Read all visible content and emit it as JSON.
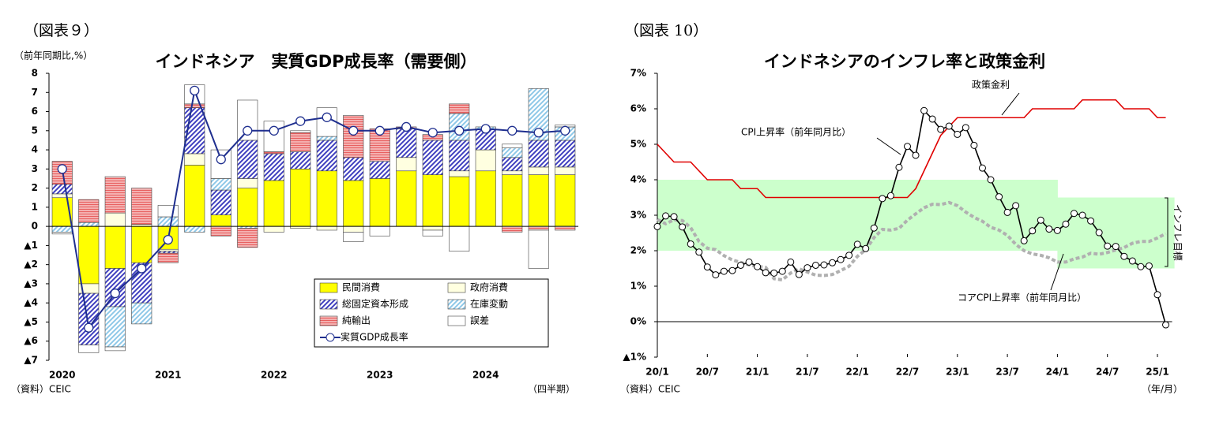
{
  "chart_data": [
    {
      "type": "bar",
      "figure_label": "（図表９）",
      "title": "インドネシア　実質GDP成長率（需要側）",
      "y_label": "（前年同期比,%）",
      "source": "（資料）CEIC",
      "x_unit": "（四半期）",
      "stacked": true,
      "grid": false,
      "categories": [
        "2020",
        null,
        null,
        null,
        "2021",
        null,
        null,
        null,
        "2022",
        null,
        null,
        null,
        "2023",
        null,
        null,
        null,
        "2024",
        null,
        null,
        null
      ],
      "ylim": [
        -7,
        8
      ],
      "yticks": [
        {
          "value": -7,
          "label": "▲7"
        },
        {
          "value": -6,
          "label": "▲6"
        },
        {
          "value": -5,
          "label": "▲5"
        },
        {
          "value": -4,
          "label": "▲4"
        },
        {
          "value": -3,
          "label": "▲3"
        },
        {
          "value": -2,
          "label": "▲2"
        },
        {
          "value": -1,
          "label": "▲1"
        },
        0,
        1,
        2,
        3,
        4,
        5,
        6,
        7,
        8
      ],
      "series": [
        {
          "name": "民間消費",
          "color": "#ffff00",
          "hatch": "none",
          "values": [
            1.5,
            -3.0,
            -2.2,
            -1.9,
            -1.2,
            3.2,
            0.6,
            2.0,
            2.4,
            3.0,
            2.9,
            2.4,
            2.5,
            2.9,
            2.7,
            2.6,
            2.9,
            2.7,
            2.7,
            2.7
          ]
        },
        {
          "name": "政府消費",
          "color": "#ffffe0",
          "hatch": "none",
          "values": [
            0.2,
            -0.5,
            0.7,
            0.1,
            -0.1,
            0.6,
            0.0,
            0.5,
            -0.3,
            -0.1,
            -0.2,
            -0.3,
            0.0,
            0.7,
            -0.2,
            0.3,
            1.1,
            0.2,
            0.4,
            0.4
          ]
        },
        {
          "name": "総固定資本形成",
          "color": "#3f3fbf",
          "hatch": "diagonal",
          "values": [
            0.5,
            -2.7,
            -2.0,
            -2.1,
            -0.1,
            2.4,
            1.3,
            2.0,
            1.4,
            0.9,
            1.6,
            1.2,
            0.9,
            1.5,
            1.8,
            1.6,
            1.1,
            0.7,
            1.4,
            1.4
          ]
        },
        {
          "name": "在庫変動",
          "color": "#8ec8e8",
          "hatch": "diagonal",
          "values": [
            -0.3,
            0.2,
            -2.1,
            -1.1,
            0.5,
            -0.3,
            0.6,
            -0.1,
            0.0,
            0.0,
            0.2,
            0.0,
            0.0,
            0.0,
            0.0,
            1.4,
            0.1,
            0.5,
            2.7,
            0.7
          ]
        },
        {
          "name": "純輸出",
          "color": "#e86060",
          "hatch": "horizontal",
          "values": [
            1.2,
            1.2,
            1.9,
            1.9,
            -0.5,
            0.2,
            -0.5,
            -1.0,
            0.1,
            1.0,
            0.0,
            2.2,
            1.7,
            0.1,
            0.3,
            0.5,
            0.0,
            -0.3,
            -0.2,
            -0.2
          ]
        },
        {
          "name": "誤差",
          "color": "#ffffff",
          "hatch": "none",
          "values": [
            -0.1,
            -0.4,
            -0.2,
            0.0,
            0.6,
            1.0,
            1.5,
            2.1,
            1.6,
            0.1,
            1.5,
            -0.5,
            -0.5,
            0.0,
            -0.3,
            -1.3,
            0.0,
            0.2,
            -2.0,
            0.1
          ]
        },
        {
          "name": "実質GDP成長率",
          "color": "#1f2f8f",
          "type": "line",
          "values": [
            3.0,
            -5.3,
            -3.5,
            -2.2,
            -0.7,
            7.1,
            3.5,
            5.0,
            5.0,
            5.5,
            5.7,
            5.0,
            5.0,
            5.2,
            4.9,
            5.0,
            5.1,
            5.0,
            4.9,
            5.0
          ]
        }
      ]
    },
    {
      "type": "line",
      "figure_label": "（図表 10）",
      "title": "インドネシアのインフレ率と政策金利",
      "source": "（資料）CEIC",
      "x_unit": "（年/月）",
      "grid": false,
      "categories": [
        "20/1",
        null,
        null,
        null,
        null,
        null,
        "20/7",
        null,
        null,
        null,
        null,
        null,
        "21/1",
        null,
        null,
        null,
        null,
        null,
        "21/7",
        null,
        null,
        null,
        null,
        null,
        "22/1",
        null,
        null,
        null,
        null,
        null,
        "22/7",
        null,
        null,
        null,
        null,
        null,
        "23/1",
        null,
        null,
        null,
        null,
        null,
        "23/7",
        null,
        null,
        null,
        null,
        null,
        "24/1",
        null,
        null,
        null,
        null,
        null,
        "24/7",
        null,
        null,
        null,
        null,
        null,
        "25/1",
        null
      ],
      "ylim": [
        -1,
        7
      ],
      "yticks": [
        {
          "value": -1,
          "label": "▲1%"
        },
        {
          "value": 0,
          "label": "0%"
        },
        {
          "value": 1,
          "label": "1%"
        },
        {
          "value": 2,
          "label": "2%"
        },
        {
          "value": 3,
          "label": "3%"
        },
        {
          "value": 4,
          "label": "4%"
        },
        {
          "value": 5,
          "label": "5%"
        },
        {
          "value": 6,
          "label": "6%"
        },
        {
          "value": 7,
          "label": "7%"
        }
      ],
      "band": {
        "name": "インフレ目標",
        "color": "#ccffcc",
        "upper": [
          4,
          4,
          4,
          4,
          4,
          4,
          4,
          4,
          4,
          4,
          4,
          4,
          4,
          4,
          4,
          4,
          4,
          4,
          4,
          4,
          4,
          4,
          4,
          4,
          4,
          4,
          4,
          4,
          4,
          4,
          4,
          4,
          4,
          4,
          4,
          4,
          4,
          4,
          4,
          4,
          4,
          4,
          4,
          4,
          4,
          4,
          4,
          4,
          3.5,
          3.5,
          3.5,
          3.5,
          3.5,
          3.5,
          3.5,
          3.5,
          3.5,
          3.5,
          3.5,
          3.5,
          3.5,
          3.5
        ],
        "lower": [
          2,
          2,
          2,
          2,
          2,
          2,
          2,
          2,
          2,
          2,
          2,
          2,
          2,
          2,
          2,
          2,
          2,
          2,
          2,
          2,
          2,
          2,
          2,
          2,
          2,
          2,
          2,
          2,
          2,
          2,
          2,
          2,
          2,
          2,
          2,
          2,
          2,
          2,
          2,
          2,
          2,
          2,
          2,
          2,
          2,
          2,
          2,
          2,
          1.5,
          1.5,
          1.5,
          1.5,
          1.5,
          1.5,
          1.5,
          1.5,
          1.5,
          1.5,
          1.5,
          1.5,
          1.5,
          1.5
        ]
      },
      "series": [
        {
          "name": "政策金利",
          "color": "#e00000",
          "marker": "none",
          "values": [
            5.0,
            4.75,
            4.5,
            4.5,
            4.5,
            4.25,
            4.0,
            4.0,
            4.0,
            4.0,
            3.75,
            3.75,
            3.75,
            3.5,
            3.5,
            3.5,
            3.5,
            3.5,
            3.5,
            3.5,
            3.5,
            3.5,
            3.5,
            3.5,
            3.5,
            3.5,
            3.5,
            3.5,
            3.5,
            3.5,
            3.5,
            3.75,
            4.25,
            4.75,
            5.25,
            5.5,
            5.75,
            5.75,
            5.75,
            5.75,
            5.75,
            5.75,
            5.75,
            5.75,
            5.75,
            6.0,
            6.0,
            6.0,
            6.0,
            6.0,
            6.0,
            6.25,
            6.25,
            6.25,
            6.25,
            6.25,
            6.0,
            6.0,
            6.0,
            6.0,
            5.75,
            5.75
          ]
        },
        {
          "name": "CPI上昇率（前年同月比）",
          "color": "#000000",
          "marker": "circle",
          "values": [
            2.68,
            2.98,
            2.96,
            2.67,
            2.19,
            1.96,
            1.54,
            1.32,
            1.42,
            1.44,
            1.59,
            1.68,
            1.55,
            1.38,
            1.37,
            1.42,
            1.68,
            1.33,
            1.52,
            1.59,
            1.6,
            1.66,
            1.75,
            1.87,
            2.18,
            2.06,
            2.64,
            3.47,
            3.55,
            4.35,
            4.94,
            4.69,
            5.95,
            5.71,
            5.42,
            5.51,
            5.28,
            5.47,
            4.97,
            4.33,
            4.0,
            3.52,
            3.08,
            3.27,
            2.28,
            2.56,
            2.86,
            2.61,
            2.57,
            2.75,
            3.05,
            3.0,
            2.84,
            2.51,
            2.13,
            2.12,
            1.84,
            1.71,
            1.55,
            1.57,
            0.76,
            -0.09
          ]
        },
        {
          "name": "コアCPI上昇率（前年同月比）",
          "color": "#b0b0b0",
          "marker": "diamond",
          "values": [
            2.88,
            2.76,
            2.87,
            2.85,
            2.65,
            2.26,
            2.07,
            2.03,
            1.86,
            1.74,
            1.67,
            1.6,
            1.56,
            1.53,
            1.21,
            1.18,
            1.37,
            1.49,
            1.4,
            1.31,
            1.3,
            1.33,
            1.44,
            1.56,
            1.84,
            2.03,
            2.37,
            2.6,
            2.58,
            2.63,
            2.86,
            3.04,
            3.21,
            3.31,
            3.3,
            3.36,
            3.27,
            3.09,
            2.94,
            2.83,
            2.66,
            2.58,
            2.43,
            2.18,
            2.0,
            1.91,
            1.87,
            1.8,
            1.68,
            1.68,
            1.77,
            1.82,
            1.93,
            1.9,
            1.95,
            2.02,
            2.09,
            2.21,
            2.26,
            2.26,
            2.36,
            2.48
          ]
        }
      ]
    }
  ]
}
